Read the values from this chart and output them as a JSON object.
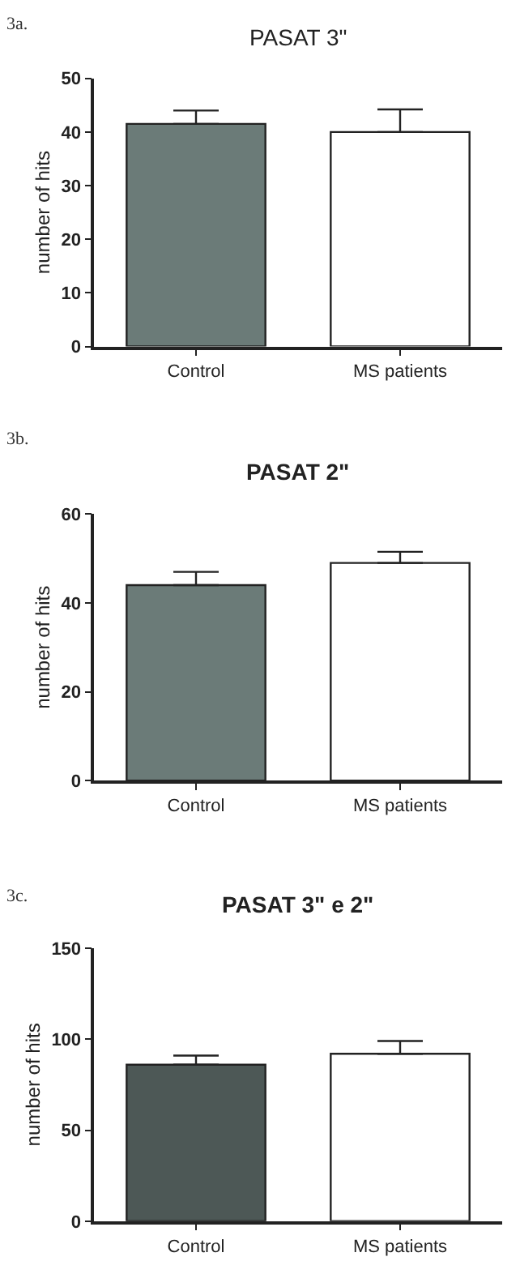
{
  "chart_data": [
    {
      "type": "bar",
      "title": "PASAT 3\"",
      "ylabel": "number of hits",
      "categories": [
        "Control",
        "MS patients"
      ],
      "values": [
        41.5,
        40
      ],
      "colors": [
        "#6b7b78",
        "#ffffff"
      ],
      "errors": [
        [
          41.5,
          44
        ],
        [
          40,
          44.2
        ]
      ],
      "ylim": [
        0,
        50
      ],
      "yticks": [
        0,
        10,
        20,
        30,
        40,
        50
      ],
      "annotations": [
        "3a."
      ]
    },
    {
      "type": "bar",
      "title": "PASAT 2\"",
      "ylabel": "number of hits",
      "categories": [
        "Control",
        "MS patients"
      ],
      "values": [
        44,
        49
      ],
      "colors": [
        "#6b7b78",
        "#ffffff"
      ],
      "errors": [
        [
          44,
          47
        ],
        [
          49,
          51.5
        ]
      ],
      "ylim": [
        0,
        60
      ],
      "yticks": [
        0,
        20,
        40,
        60
      ],
      "annotations": [
        "3b."
      ]
    },
    {
      "type": "bar",
      "title": "PASAT 3\" e 2\"",
      "ylabel": "number of hits",
      "categories": [
        "Control",
        "MS patients"
      ],
      "values": [
        86,
        92
      ],
      "colors": [
        "#4d5856",
        "#ffffff"
      ],
      "errors": [
        [
          86,
          91
        ],
        [
          92,
          99
        ]
      ],
      "ylim": [
        0,
        150
      ],
      "yticks": [
        0,
        50,
        100,
        150
      ],
      "annotations": [
        "3c."
      ]
    }
  ]
}
